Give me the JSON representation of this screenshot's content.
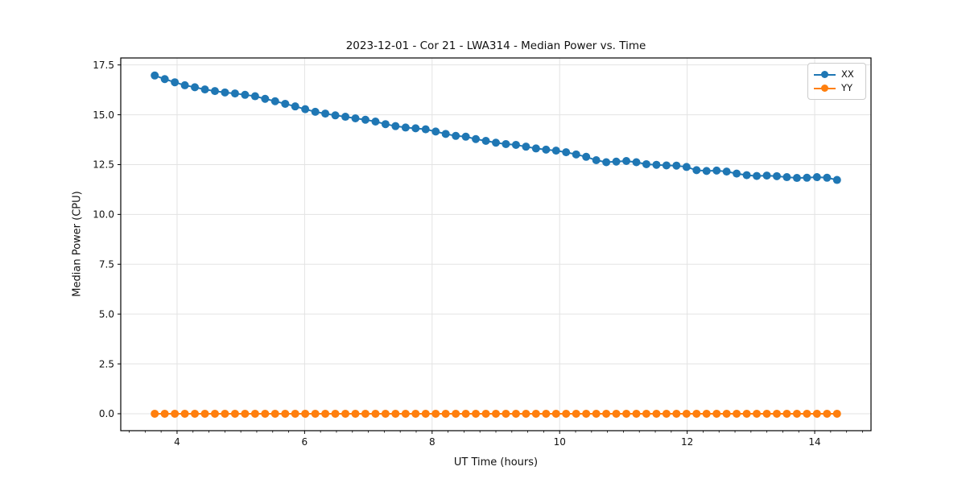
{
  "figure": {
    "title": "2023-12-01 - Cor 21 - LWA314 - Median Power vs. Time",
    "xlabel": "UT Time (hours)",
    "ylabel": "Median Power (CPU)"
  },
  "legend": {
    "position": "upper right",
    "entries": [
      {
        "label": "XX",
        "color": "#1f77b4"
      },
      {
        "label": "YY",
        "color": "#ff7f0e"
      }
    ]
  },
  "chart_data": {
    "type": "line",
    "title": "2023-12-01 - Cor 21 - LWA314 - Median Power vs. Time",
    "xlabel": "UT Time (hours)",
    "ylabel": "Median Power (CPU)",
    "xlim": [
      3.117,
      14.883
    ],
    "ylim": [
      -0.85,
      17.85
    ],
    "xticks": [
      4,
      6,
      8,
      10,
      12,
      14
    ],
    "xtick_labels": [
      "4",
      "6",
      "8",
      "10",
      "12",
      "14"
    ],
    "xminor_step": 0.25,
    "yticks": [
      0,
      2.5,
      5,
      7.5,
      10,
      12.5,
      15,
      17.5
    ],
    "ytick_labels": [
      "0.0",
      "2.5",
      "5.0",
      "7.5",
      "10.0",
      "12.5",
      "15.0",
      "17.5"
    ],
    "grid": true,
    "grid_color": "#e3e3e3",
    "legend_position": "upper right",
    "x": [
      3.65,
      3.807,
      3.965,
      4.122,
      4.279,
      4.437,
      4.594,
      4.751,
      4.909,
      5.066,
      5.224,
      5.381,
      5.538,
      5.696,
      5.853,
      6.01,
      6.168,
      6.325,
      6.482,
      6.64,
      6.797,
      6.954,
      7.112,
      7.269,
      7.426,
      7.584,
      7.741,
      7.899,
      8.056,
      8.213,
      8.371,
      8.528,
      8.685,
      8.843,
      9.0,
      9.157,
      9.315,
      9.472,
      9.629,
      9.787,
      9.944,
      10.101,
      10.259,
      10.416,
      10.574,
      10.731,
      10.888,
      11.046,
      11.203,
      11.36,
      11.518,
      11.675,
      11.832,
      11.99,
      12.147,
      12.304,
      12.462,
      12.619,
      12.776,
      12.934,
      13.091,
      13.249,
      13.406,
      13.563,
      13.721,
      13.878,
      14.035,
      14.193,
      14.35
    ],
    "series": [
      {
        "name": "XX",
        "color": "#1f77b4",
        "values": [
          16.97,
          16.79,
          16.63,
          16.48,
          16.38,
          16.27,
          16.19,
          16.12,
          16.07,
          16.0,
          15.93,
          15.8,
          15.68,
          15.55,
          15.42,
          15.28,
          15.15,
          15.06,
          14.97,
          14.9,
          14.82,
          14.75,
          14.66,
          14.53,
          14.43,
          14.36,
          14.32,
          14.27,
          14.16,
          14.04,
          13.94,
          13.9,
          13.78,
          13.69,
          13.6,
          13.53,
          13.49,
          13.4,
          13.31,
          13.25,
          13.2,
          13.12,
          13.01,
          12.89,
          12.72,
          12.62,
          12.65,
          12.68,
          12.62,
          12.52,
          12.49,
          12.46,
          12.45,
          12.38,
          12.22,
          12.18,
          12.2,
          12.15,
          12.05,
          11.97,
          11.93,
          11.95,
          11.92,
          11.87,
          11.83,
          11.84,
          11.87,
          11.84,
          11.73
        ]
      },
      {
        "name": "YY",
        "color": "#ff7f0e",
        "values": [
          0,
          0,
          0,
          0,
          0,
          0,
          0,
          0,
          0,
          0,
          0,
          0,
          0,
          0,
          0,
          0,
          0,
          0,
          0,
          0,
          0,
          0,
          0,
          0,
          0,
          0,
          0,
          0,
          0,
          0,
          0,
          0,
          0,
          0,
          0,
          0,
          0,
          0,
          0,
          0,
          0,
          0,
          0,
          0,
          0,
          0,
          0,
          0,
          0,
          0,
          0,
          0,
          0,
          0,
          0,
          0,
          0,
          0,
          0,
          0,
          0,
          0,
          0,
          0,
          0,
          0,
          0,
          0,
          0
        ]
      }
    ],
    "marker": "o",
    "marker_radius": 5,
    "line_width": 2
  }
}
